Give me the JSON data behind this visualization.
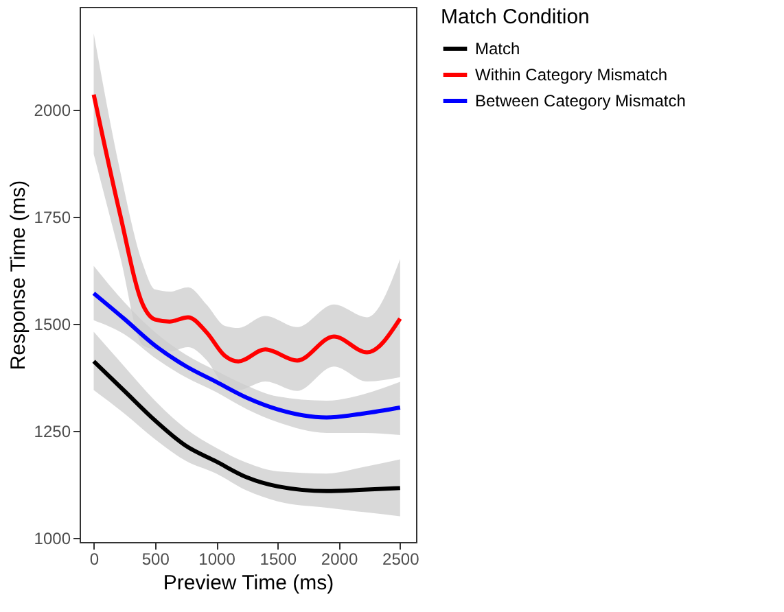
{
  "chart_data": {
    "type": "line",
    "xlabel": "Preview Time (ms)",
    "ylabel": "Response Time (ms)",
    "legend_title": "Match Condition",
    "legend": "right",
    "grid": false,
    "marker": "none",
    "line_style": "solid",
    "xlim": [
      -115,
      2630
    ],
    "ylim": [
      990,
      2240
    ],
    "xticks": [
      0,
      500,
      1000,
      1500,
      2000,
      2500
    ],
    "yticks": [
      1000,
      1250,
      1500,
      1750,
      2000
    ],
    "series": [
      {
        "name": "Match",
        "color": "#000000",
        "x": [
          0,
          250,
          500,
          750,
          1000,
          1250,
          1500,
          1900,
          2200,
          2500
        ],
        "values": [
          1412,
          1343,
          1274,
          1215,
          1178,
          1141,
          1120,
          1109,
          1112,
          1116
        ],
        "lower": [
          1345,
          1290,
          1230,
          1180,
          1150,
          1110,
          1085,
          1070,
          1060,
          1050
        ],
        "upper": [
          1481,
          1400,
          1320,
          1255,
          1210,
          1175,
          1155,
          1150,
          1165,
          1183
        ]
      },
      {
        "name": "Within Category Mismatch",
        "color": "#ff0000",
        "x": [
          0,
          213,
          400,
          500,
          620,
          770,
          920,
          1070,
          1180,
          1400,
          1660,
          1960,
          2230,
          2500
        ],
        "values": [
          2035,
          1758,
          1545,
          1510,
          1505,
          1515,
          1480,
          1425,
          1412,
          1440,
          1414,
          1470,
          1433,
          1512
        ],
        "lower": [
          1896,
          1660,
          1450,
          1440,
          1435,
          1445,
          1415,
          1355,
          1345,
          1365,
          1343,
          1400,
          1365,
          1375
        ],
        "upper": [
          2178,
          1860,
          1640,
          1580,
          1575,
          1585,
          1545,
          1495,
          1490,
          1518,
          1492,
          1545,
          1515,
          1651
        ]
      },
      {
        "name": "Between Category Mismatch",
        "color": "#0000ff",
        "x": [
          0,
          250,
          500,
          750,
          1000,
          1250,
          1500,
          1900,
          2200,
          2500
        ],
        "values": [
          1571,
          1511,
          1449,
          1401,
          1364,
          1327,
          1300,
          1281,
          1290,
          1304
        ],
        "lower": [
          1508,
          1475,
          1420,
          1375,
          1340,
          1300,
          1270,
          1245,
          1245,
          1240
        ],
        "upper": [
          1635,
          1550,
          1480,
          1428,
          1390,
          1355,
          1330,
          1320,
          1335,
          1364
        ]
      }
    ]
  }
}
